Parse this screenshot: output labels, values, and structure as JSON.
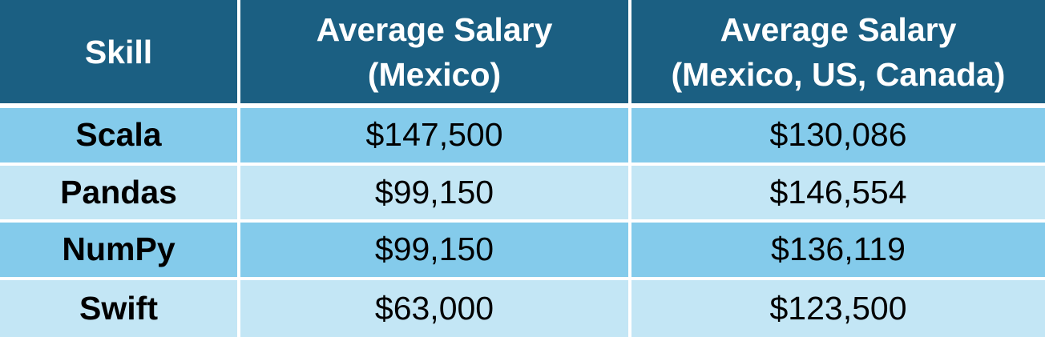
{
  "table": {
    "headers": [
      {
        "line1": "Skill",
        "line2": ""
      },
      {
        "line1": "Average Salary",
        "line2": "(Mexico)"
      },
      {
        "line1": "Average Salary",
        "line2": "(Mexico, US, Canada)"
      }
    ],
    "rows": [
      {
        "skill": "Scala",
        "avg_mexico": "$147,500",
        "avg_na": "$130,086"
      },
      {
        "skill": "Pandas",
        "avg_mexico": "$99,150",
        "avg_na": "$146,554"
      },
      {
        "skill": "NumPy",
        "avg_mexico": "$99,150",
        "avg_na": "$136,119"
      },
      {
        "skill": "Swift",
        "avg_mexico": "$63,000",
        "avg_na": "$123,500"
      }
    ]
  },
  "colors": {
    "header_bg": "#1b5f82",
    "row_dark": "#84cbeb",
    "row_light": "#c3e6f5"
  }
}
